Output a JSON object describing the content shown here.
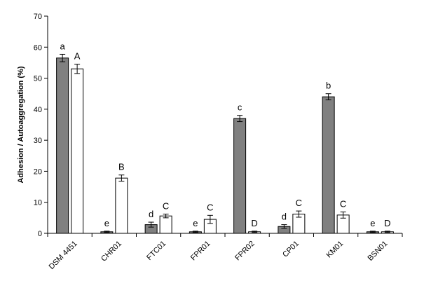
{
  "chart_data": {
    "type": "bar",
    "ylabel": "Adhesion / Autoaggregation (%)",
    "xlabel": "",
    "ylim": [
      0,
      70
    ],
    "yticks": [
      0,
      10,
      20,
      30,
      40,
      50,
      60,
      70
    ],
    "grid": false,
    "legend": "none",
    "categories": [
      "DSM 4451",
      "CHR01",
      "FTC01",
      "FPR01",
      "FPR02",
      "CP01",
      "KM01",
      "BSN01"
    ],
    "series": [
      {
        "color": "#808080",
        "values": [
          56.5,
          0.5,
          2.8,
          0.5,
          37.0,
          2.2,
          44.0,
          0.5
        ],
        "errors": [
          1.2,
          0.2,
          0.8,
          0.2,
          1.0,
          0.6,
          1.0,
          0.2
        ],
        "letters": [
          "a",
          "e",
          "d",
          "e",
          "c",
          "d",
          "b",
          "e"
        ]
      },
      {
        "color": "#ffffff",
        "values": [
          53.0,
          17.8,
          5.6,
          4.5,
          0.5,
          6.2,
          5.9,
          0.5
        ],
        "errors": [
          1.5,
          1.0,
          0.6,
          1.3,
          0.2,
          1.0,
          1.0,
          0.2
        ],
        "letters": [
          "A",
          "B",
          "C",
          "C",
          "D",
          "C",
          "C",
          "D"
        ]
      }
    ]
  }
}
